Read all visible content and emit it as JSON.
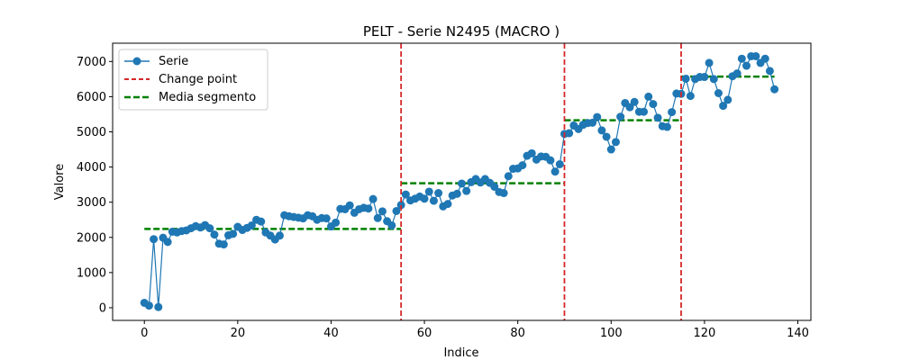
{
  "chart_data": {
    "type": "line",
    "title": "PELT - Serie N2495 (MACRO       )",
    "xlabel": "Indice",
    "ylabel": "Valore",
    "xlim": [
      -6.8,
      142.8
    ],
    "ylim": [
      -360,
      7520
    ],
    "xticks": [
      0,
      20,
      40,
      60,
      80,
      100,
      120,
      140
    ],
    "yticks": [
      0,
      1000,
      2000,
      3000,
      4000,
      5000,
      6000,
      7000
    ],
    "grid": false,
    "legend_position": "top-left",
    "legend": {
      "series": "Serie",
      "change_point": "Change point",
      "segment_mean": "Media segmento"
    },
    "colors": {
      "series": "#1f77b4",
      "change_point": "#d62728",
      "segment_mean": "#008000"
    },
    "series": [
      {
        "name": "Serie",
        "values": [
          140,
          60,
          1950,
          20,
          1990,
          1870,
          2160,
          2140,
          2180,
          2200,
          2260,
          2320,
          2280,
          2350,
          2260,
          2080,
          1820,
          1800,
          2060,
          2100,
          2300,
          2210,
          2270,
          2340,
          2500,
          2450,
          2140,
          2050,
          1940,
          2050,
          2630,
          2600,
          2580,
          2560,
          2540,
          2630,
          2600,
          2500,
          2550,
          2540,
          2310,
          2420,
          2810,
          2800,
          2910,
          2700,
          2800,
          2840,
          2820,
          3090,
          2550,
          2740,
          2460,
          2340,
          2750,
          2920,
          3220,
          3050,
          3100,
          3160,
          3100,
          3300,
          3040,
          3260,
          2880,
          2950,
          3190,
          3240,
          3530,
          3320,
          3570,
          3660,
          3560,
          3660,
          3550,
          3440,
          3290,
          3260,
          3740,
          3950,
          3960,
          4050,
          4320,
          4390,
          4210,
          4300,
          4290,
          4190,
          3870,
          4080,
          4940,
          4960,
          5180,
          5080,
          5200,
          5250,
          5260,
          5420,
          5040,
          4860,
          4500,
          4710,
          5430,
          5820,
          5700,
          5850,
          5570,
          5570,
          6000,
          5790,
          5400,
          5160,
          5140,
          5560,
          6090,
          6080,
          6510,
          6020,
          6500,
          6560,
          6560,
          6960,
          6500,
          6100,
          5740,
          5910,
          6580,
          6660,
          7080,
          6880,
          7150,
          7150,
          6960,
          7080,
          6730,
          6210
        ]
      }
    ],
    "change_points": [
      55,
      90,
      115
    ],
    "segment_means": [
      {
        "x_start": 0,
        "x_end": 55,
        "value": 2240
      },
      {
        "x_start": 55,
        "x_end": 90,
        "value": 3540
      },
      {
        "x_start": 90,
        "x_end": 115,
        "value": 5330
      },
      {
        "x_start": 115,
        "x_end": 135,
        "value": 6570
      }
    ]
  }
}
